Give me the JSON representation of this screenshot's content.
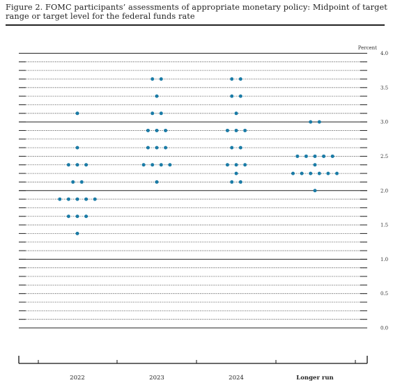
{
  "title": "Figure 2.  FOMC participants’ assessments of appropriate monetary policy:  Midpoint of target range or target level for the federal funds rate",
  "chart_data": {
    "type": "scatter",
    "title": "Figure 2.  FOMC participants’ assessments of appropriate monetary policy:  Midpoint of target range or target level for the federal funds rate",
    "ylabel": "Percent",
    "ylim": [
      0,
      4.0
    ],
    "yticks": [
      "0.0",
      "0.5",
      "1.0",
      "1.5",
      "2.0",
      "2.5",
      "3.0",
      "3.5",
      "4.0"
    ],
    "grid": "solid at whole percents, dotted at 0.125 increments",
    "categories": [
      "2022",
      "2023",
      "2024",
      "Longer run"
    ],
    "marker_color": "#1a7ba6",
    "series": [
      {
        "category": "2022",
        "points": [
          {
            "y": 3.125,
            "count": 1
          },
          {
            "y": 2.625,
            "count": 1
          },
          {
            "y": 2.375,
            "count": 3
          },
          {
            "y": 2.125,
            "count": 2
          },
          {
            "y": 1.875,
            "count": 5
          },
          {
            "y": 1.625,
            "count": 3
          },
          {
            "y": 1.375,
            "count": 1
          }
        ]
      },
      {
        "category": "2023",
        "points": [
          {
            "y": 3.625,
            "count": 2
          },
          {
            "y": 3.375,
            "count": 1
          },
          {
            "y": 3.125,
            "count": 2
          },
          {
            "y": 2.875,
            "count": 3
          },
          {
            "y": 2.625,
            "count": 3
          },
          {
            "y": 2.375,
            "count": 4
          },
          {
            "y": 2.125,
            "count": 1
          }
        ]
      },
      {
        "category": "2024",
        "points": [
          {
            "y": 3.625,
            "count": 2
          },
          {
            "y": 3.375,
            "count": 2
          },
          {
            "y": 3.125,
            "count": 1
          },
          {
            "y": 2.875,
            "count": 3
          },
          {
            "y": 2.625,
            "count": 2
          },
          {
            "y": 2.375,
            "count": 3
          },
          {
            "y": 2.25,
            "count": 1
          },
          {
            "y": 2.125,
            "count": 2
          }
        ]
      },
      {
        "category": "Longer run",
        "points": [
          {
            "y": 3.0,
            "count": 2
          },
          {
            "y": 2.5,
            "count": 5
          },
          {
            "y": 2.375,
            "count": 1
          },
          {
            "y": 2.25,
            "count": 6
          },
          {
            "y": 2.0,
            "count": 1
          }
        ]
      }
    ]
  }
}
